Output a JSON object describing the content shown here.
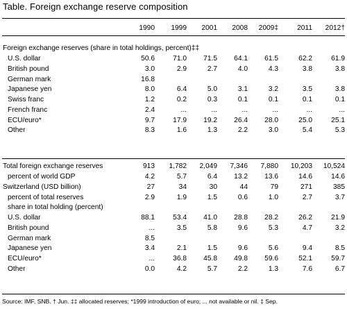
{
  "title": "Table. Foreign exchange reserve composition",
  "columns": [
    "1990",
    "1999",
    "2001",
    "2008",
    "2009‡",
    "2011",
    "2012†"
  ],
  "section1": {
    "header": "Foreign exchange reserves (share in total holdings, percent)‡‡",
    "rows": [
      {
        "label": "U.S. dollar",
        "values": [
          "50.6",
          "71.0",
          "71.5",
          "64.1",
          "61.5",
          "62.2",
          "61.9"
        ]
      },
      {
        "label": "British pound",
        "values": [
          "3.0",
          "2.9",
          "2.7",
          "4.0",
          "4.3",
          "3.8",
          "3.8"
        ]
      },
      {
        "label": "German mark",
        "values": [
          "16.8",
          "",
          "",
          "",
          "",
          "",
          ""
        ]
      },
      {
        "label": "Japanese yen",
        "values": [
          "8.0",
          "6.4",
          "5.0",
          "3.1",
          "3.2",
          "3.5",
          "3.8"
        ]
      },
      {
        "label": "Swiss franc",
        "values": [
          "1.2",
          "0.2",
          "0.3",
          "0.1",
          "0.1",
          "0.1",
          "0.1"
        ]
      },
      {
        "label": "French franc",
        "values": [
          "2.4",
          "...",
          "...",
          "...",
          "...",
          "...",
          "..."
        ]
      },
      {
        "label": "ECU/euro*",
        "values": [
          "9.7",
          "17.9",
          "19.2",
          "26.4",
          "28.0",
          "25.0",
          "25.1"
        ]
      },
      {
        "label": "Other",
        "values": [
          "8.3",
          "1.6",
          "1.3",
          "2.2",
          "3.0",
          "5.4",
          "5.3"
        ]
      }
    ]
  },
  "section2": {
    "rows": [
      {
        "label": "Total foreign exchange reserves",
        "values": [
          "913",
          "1,782",
          "2,049",
          "7,346",
          "7,880",
          "10,203",
          "10,524"
        ]
      },
      {
        "label": "percent of world GDP",
        "values": [
          "4.2",
          "5.7",
          "6.4",
          "13.2",
          "13.6",
          "14.6",
          "14.6"
        ]
      },
      {
        "label": "Switzerland (USD billion)",
        "values": [
          "27",
          "34",
          "30",
          "44",
          "79",
          "271",
          "385"
        ]
      },
      {
        "label": "percent of total reserves",
        "values": [
          "2.9",
          "1.9",
          "1.5",
          "0.6",
          "1.0",
          "2.7",
          "3.7"
        ]
      },
      {
        "label": "share in total holding (percent)",
        "values": [
          "",
          "",
          "",
          "",
          "",
          "",
          ""
        ]
      },
      {
        "label": "U.S. dollar",
        "values": [
          "88.1",
          "53.4",
          "41.0",
          "28.8",
          "28.2",
          "26.2",
          "21.9"
        ]
      },
      {
        "label": "British pound",
        "values": [
          "...",
          "3.5",
          "5.8",
          "9.6",
          "5.3",
          "4.7",
          "3.2"
        ]
      },
      {
        "label": "German mark",
        "values": [
          "8.5",
          "",
          "",
          "",
          "",
          "",
          ""
        ]
      },
      {
        "label": "Japanese yen",
        "values": [
          "3.4",
          "2.1",
          "1.5",
          "9.6",
          "5.6",
          "9.4",
          "8.5"
        ]
      },
      {
        "label": "ECU/euro*",
        "values": [
          "...",
          "36.8",
          "45.8",
          "49.8",
          "59.6",
          "52.1",
          "59.7"
        ]
      },
      {
        "label": "Other",
        "values": [
          "0.0",
          "4.2",
          "5.7",
          "2.2",
          "1.3",
          "7.6",
          "6.7"
        ]
      }
    ]
  },
  "footnote": "Source: IMF, SNB. † Jun. ‡‡ allocated reserves; *1999 introduction of euro; ... not available or nil. ‡ Sep."
}
